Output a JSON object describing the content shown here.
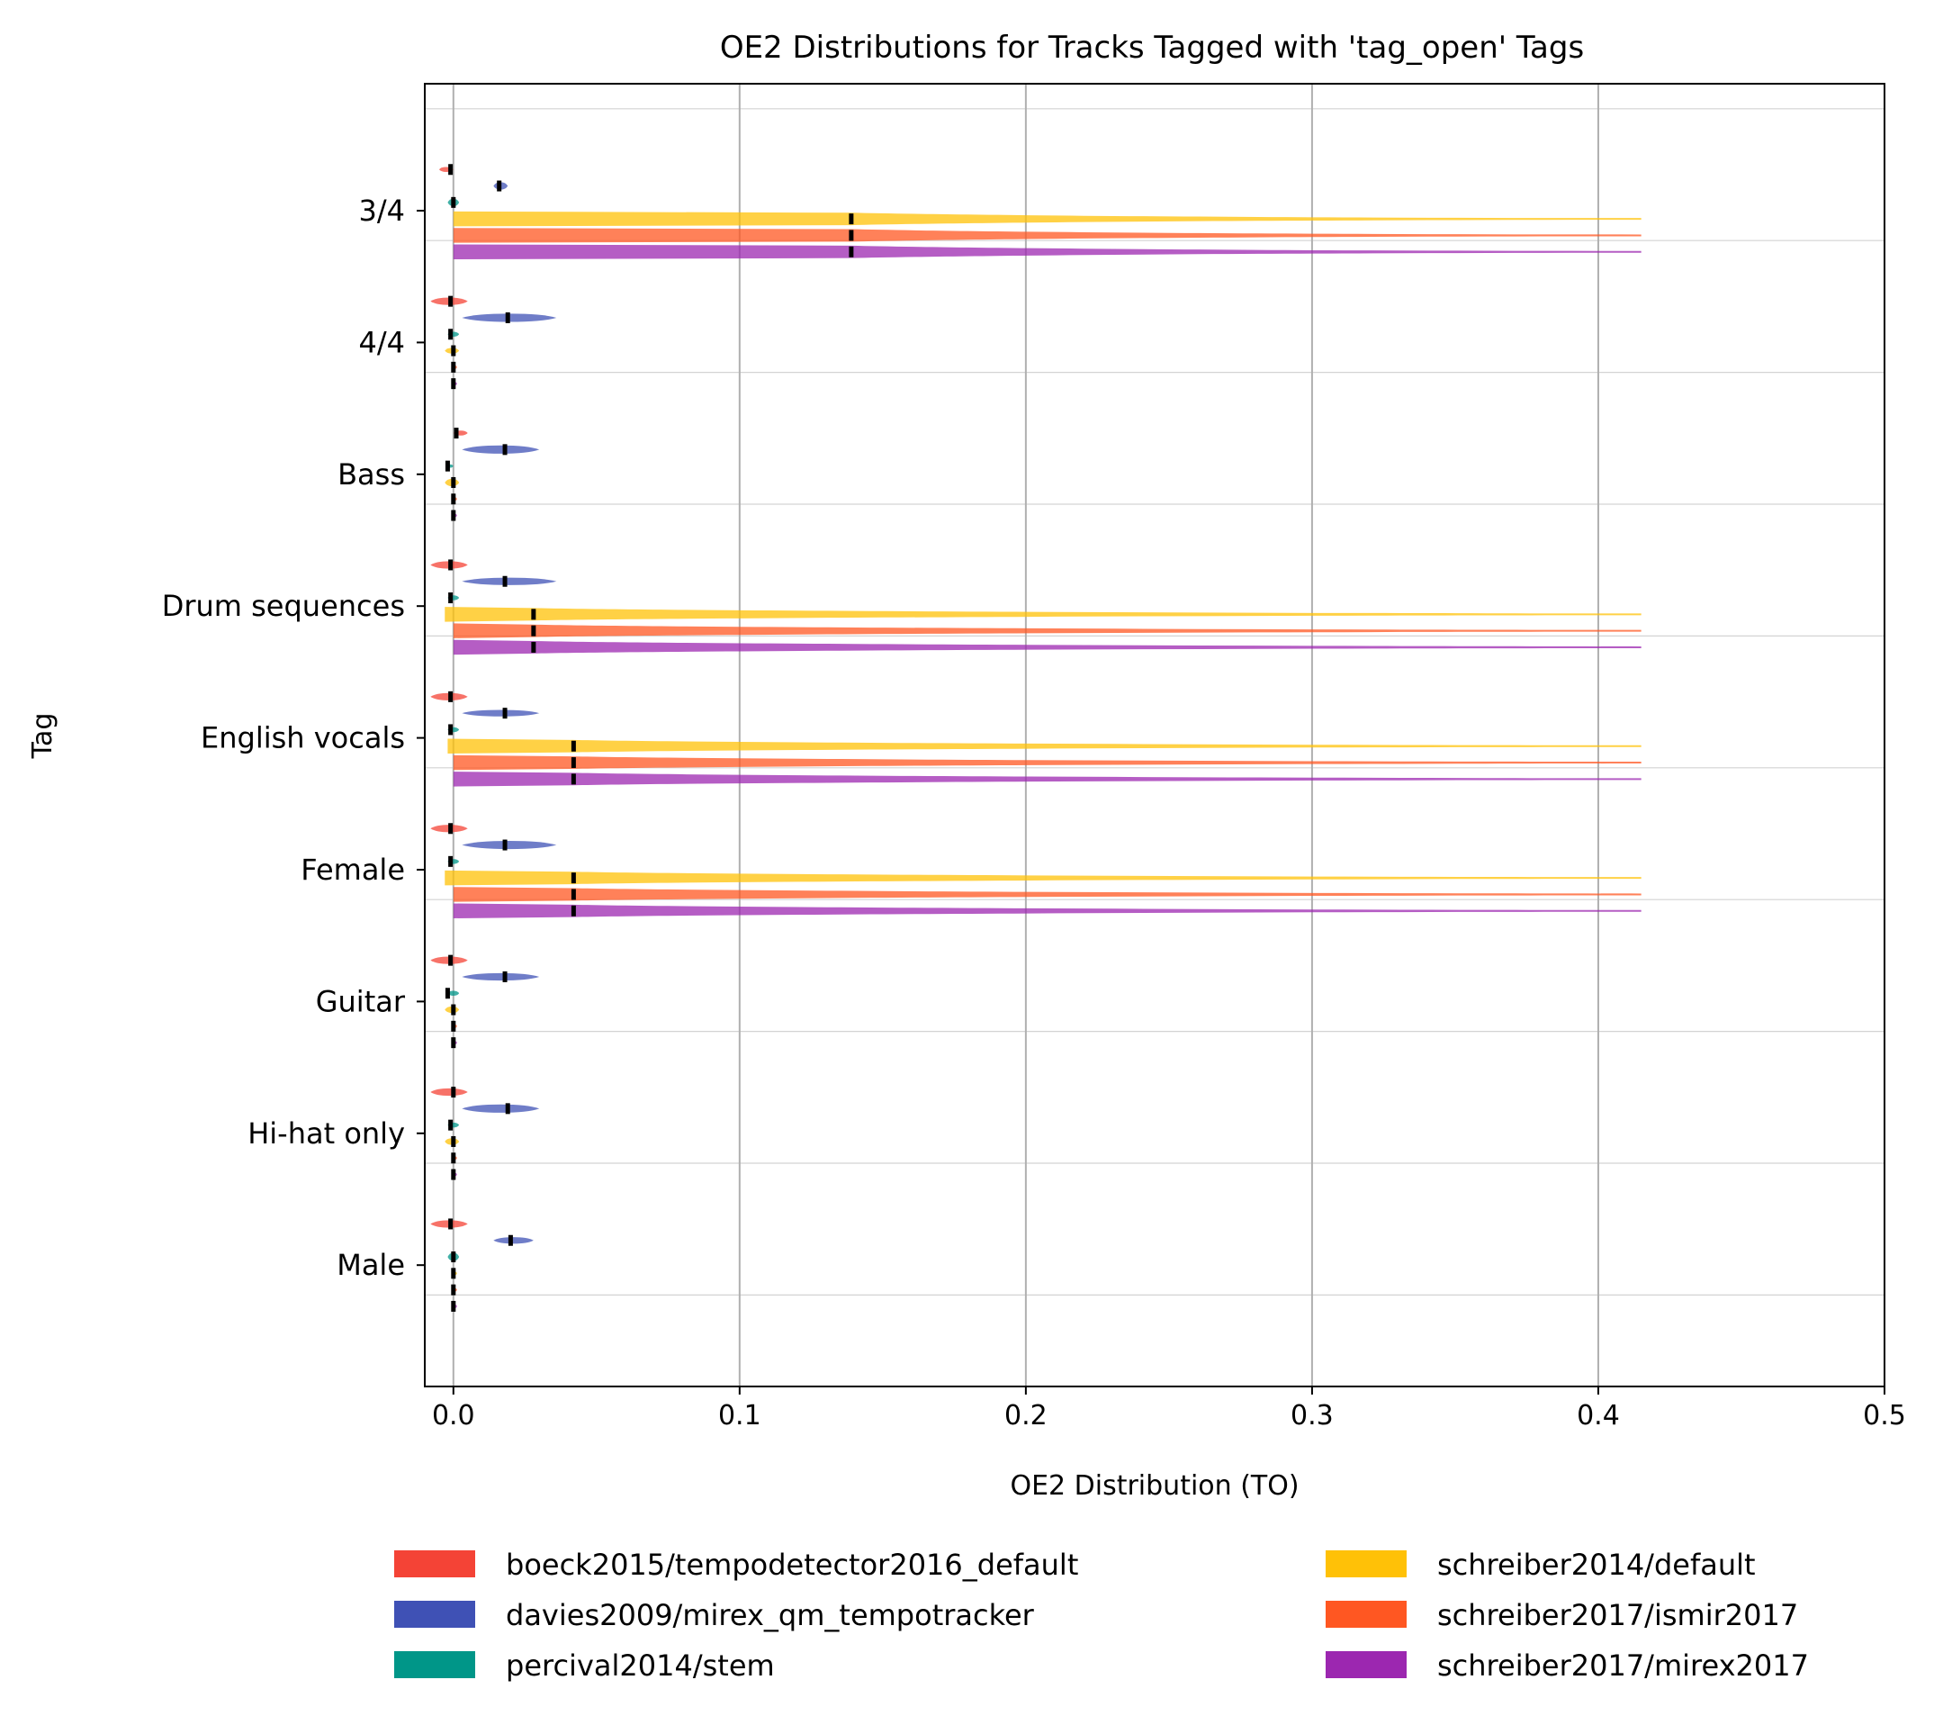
{
  "chart_data": {
    "type": "violin",
    "orientation": "horizontal",
    "title": "OE2 Distributions for Tracks Tagged with 'tag_open' Tags",
    "xlabel": "OE2 Distribution (TO)",
    "ylabel": "Tag",
    "xlim": [
      -0.01,
      0.5
    ],
    "xticks": [
      0.0,
      0.1,
      0.2,
      0.3,
      0.4,
      0.5
    ],
    "xtick_labels": [
      "0.0",
      "0.1",
      "0.2",
      "0.3",
      "0.4",
      "0.5"
    ],
    "grid": "x",
    "legend_placement": "below",
    "categories": [
      "3/4",
      "4/4",
      "Bass",
      "Drum sequences",
      "English vocals",
      "Female",
      "Guitar",
      "Hi-hat only",
      "Male"
    ],
    "series": [
      {
        "name": "boeck2015/tempodetector2016_default",
        "color": "#f44336",
        "medians": [
          -0.001,
          -0.001,
          0.001,
          -0.001,
          -0.001,
          -0.001,
          -0.001,
          0.0,
          -0.001
        ],
        "spans": [
          [
            -0.005,
            0.0
          ],
          [
            -0.008,
            0.005
          ],
          [
            0.0,
            0.005
          ],
          [
            -0.008,
            0.005
          ],
          [
            -0.008,
            0.005
          ],
          [
            -0.008,
            0.005
          ],
          [
            -0.008,
            0.005
          ],
          [
            -0.008,
            0.005
          ],
          [
            -0.008,
            0.005
          ]
        ],
        "widths": [
          0.3,
          0.45,
          0.3,
          0.45,
          0.45,
          0.45,
          0.45,
          0.45,
          0.45
        ]
      },
      {
        "name": "davies2009/mirex_qm_tempotracker",
        "color": "#3f51b5",
        "medians": [
          0.016,
          0.019,
          0.018,
          0.018,
          0.018,
          0.018,
          0.018,
          0.019,
          0.02
        ],
        "spans": [
          [
            0.014,
            0.019
          ],
          [
            0.003,
            0.036
          ],
          [
            0.003,
            0.03
          ],
          [
            0.003,
            0.036
          ],
          [
            0.003,
            0.03
          ],
          [
            0.003,
            0.036
          ],
          [
            0.003,
            0.03
          ],
          [
            0.003,
            0.03
          ],
          [
            0.014,
            0.028
          ]
        ],
        "widths": [
          0.45,
          0.5,
          0.5,
          0.45,
          0.4,
          0.5,
          0.45,
          0.5,
          0.4
        ]
      },
      {
        "name": "percival2014/stem",
        "color": "#009688",
        "medians": [
          0.0,
          -0.001,
          -0.002,
          -0.001,
          -0.001,
          -0.001,
          -0.002,
          -0.001,
          0.0
        ],
        "spans": [
          [
            -0.002,
            0.002
          ],
          [
            -0.002,
            0.002
          ],
          [
            -0.002,
            0.0
          ],
          [
            -0.002,
            0.002
          ],
          [
            -0.002,
            0.002
          ],
          [
            -0.002,
            0.002
          ],
          [
            -0.002,
            0.002
          ],
          [
            -0.002,
            0.002
          ],
          [
            -0.002,
            0.002
          ]
        ],
        "widths": [
          0.45,
          0.3,
          0.2,
          0.3,
          0.3,
          0.3,
          0.3,
          0.3,
          0.5
        ]
      },
      {
        "name": "schreiber2014/default",
        "color": "#ffc107",
        "medians": [
          0.139,
          0.0,
          0.0,
          0.028,
          0.042,
          0.042,
          0.0,
          0.0,
          0.0
        ],
        "spans": [
          [
            0.0,
            0.415
          ],
          [
            -0.003,
            0.002
          ],
          [
            -0.003,
            0.002
          ],
          [
            -0.003,
            0.415
          ],
          [
            -0.002,
            0.415
          ],
          [
            -0.003,
            0.415
          ],
          [
            -0.003,
            0.002
          ],
          [
            -0.003,
            0.002
          ],
          [
            0.0,
            0.001
          ]
        ],
        "widths": [
          0.9,
          0.35,
          0.45,
          0.9,
          0.9,
          0.9,
          0.4,
          0.4,
          0.2
        ]
      },
      {
        "name": "schreiber2017/ismir2017",
        "color": "#ff5722",
        "medians": [
          0.139,
          0.0,
          0.0,
          0.028,
          0.042,
          0.042,
          0.0,
          0.0,
          0.0
        ],
        "spans": [
          [
            0.0,
            0.415
          ],
          [
            0.0,
            0.0
          ],
          [
            0.0,
            0.0
          ],
          [
            0.0,
            0.415
          ],
          [
            0.0,
            0.415
          ],
          [
            0.0,
            0.415
          ],
          [
            0.0,
            0.0
          ],
          [
            0.0,
            0.0
          ],
          [
            0.0,
            0.0
          ]
        ],
        "widths": [
          0.9,
          0.2,
          0.2,
          0.9,
          0.9,
          0.9,
          0.2,
          0.2,
          0.2
        ]
      },
      {
        "name": "schreiber2017/mirex2017",
        "color": "#9c27b0",
        "medians": [
          0.139,
          0.0,
          0.0,
          0.028,
          0.042,
          0.042,
          0.0,
          0.0,
          0.0
        ],
        "spans": [
          [
            0.0,
            0.415
          ],
          [
            0.0,
            0.0
          ],
          [
            0.0,
            0.0
          ],
          [
            0.0,
            0.415
          ],
          [
            0.0,
            0.415
          ],
          [
            0.0,
            0.415
          ],
          [
            0.0,
            0.0
          ],
          [
            0.0,
            0.0
          ],
          [
            0.0,
            0.0
          ]
        ],
        "widths": [
          0.9,
          0.2,
          0.2,
          0.9,
          0.9,
          0.9,
          0.2,
          0.2,
          0.2
        ]
      }
    ]
  }
}
